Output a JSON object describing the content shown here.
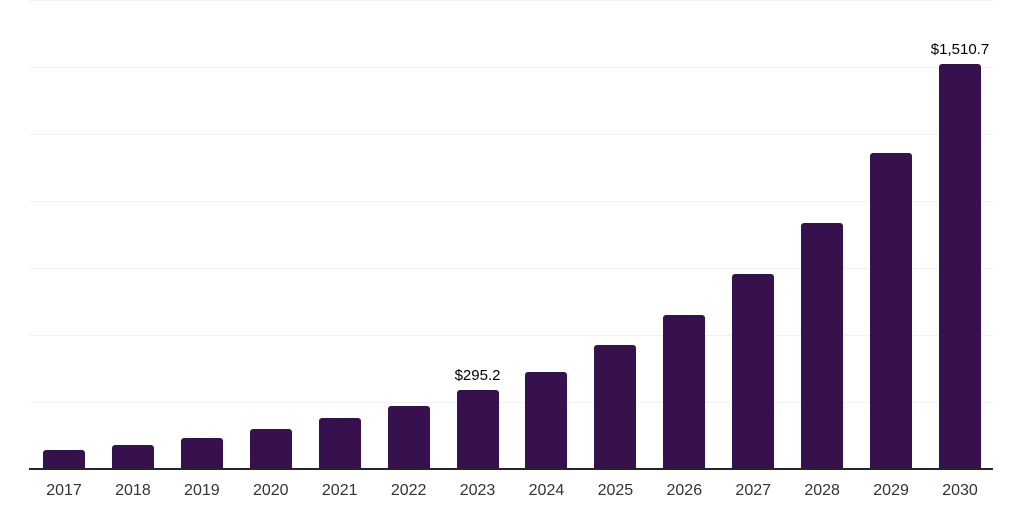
{
  "chart_data": {
    "type": "bar",
    "title": "",
    "categories": [
      "2017",
      "2018",
      "2019",
      "2020",
      "2021",
      "2022",
      "2023",
      "2024",
      "2025",
      "2026",
      "2027",
      "2028",
      "2029",
      "2030"
    ],
    "values": [
      72,
      90,
      114,
      149,
      190,
      234,
      295.2,
      363,
      462,
      574,
      727,
      919,
      1178,
      1510.7
    ],
    "labels": [
      "",
      "",
      "",
      "",
      "",
      "",
      "$295.2",
      "",
      "",
      "",
      "",
      "",
      "",
      "$1,510.7"
    ],
    "xlabel": "",
    "ylabel": "",
    "ylim": [
      0,
      1750
    ],
    "gridline_step": 250,
    "grid": "horizontal",
    "legend": "none",
    "y_axis_labels_visible": false,
    "colors": {
      "bar": "#36114E",
      "axis_line": "#262626",
      "gridline": "#f2f2f2",
      "data_label": "#000000",
      "tick_label": "#333333",
      "background": "#ffffff"
    }
  }
}
